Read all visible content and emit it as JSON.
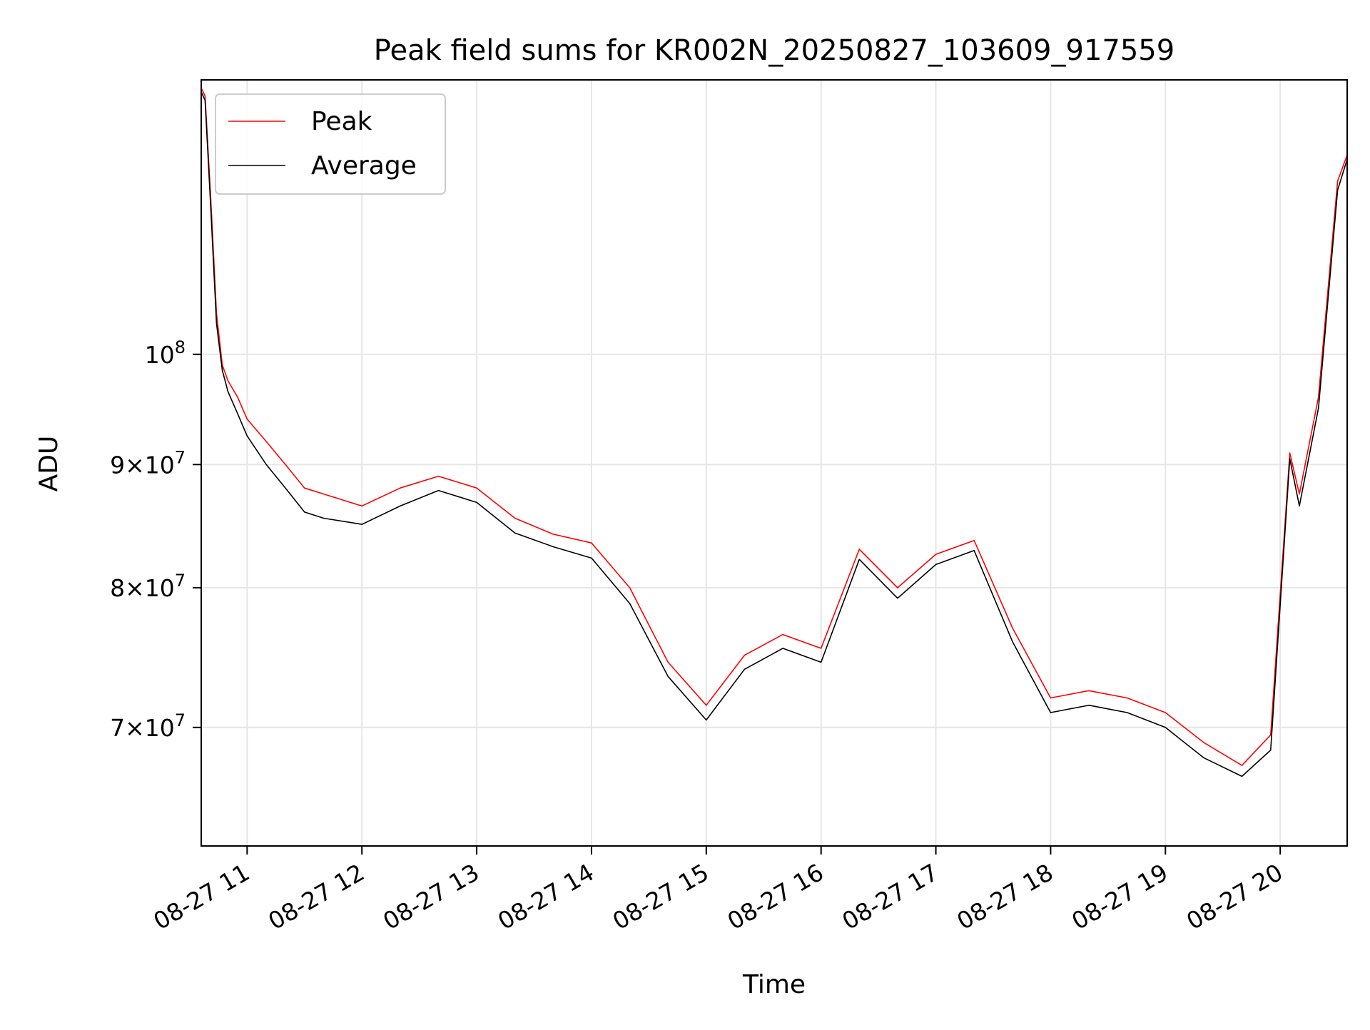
{
  "chart_data": {
    "type": "line",
    "title": "Peak field sums for KR002N_20250827_103609_917559",
    "xlabel": "Time",
    "ylabel": "ADU",
    "x_axis": {
      "kind": "datetime",
      "range": [
        "2025-08-27 10:36",
        "2025-08-27 20:35"
      ],
      "ticks": [
        {
          "value": "2025-08-27 11:00",
          "label": "08-27 11"
        },
        {
          "value": "2025-08-27 12:00",
          "label": "08-27 12"
        },
        {
          "value": "2025-08-27 13:00",
          "label": "08-27 13"
        },
        {
          "value": "2025-08-27 14:00",
          "label": "08-27 14"
        },
        {
          "value": "2025-08-27 15:00",
          "label": "08-27 15"
        },
        {
          "value": "2025-08-27 16:00",
          "label": "08-27 16"
        },
        {
          "value": "2025-08-27 17:00",
          "label": "08-27 17"
        },
        {
          "value": "2025-08-27 18:00",
          "label": "08-27 18"
        },
        {
          "value": "2025-08-27 19:00",
          "label": "08-27 19"
        },
        {
          "value": "2025-08-27 20:00",
          "label": "08-27 20"
        }
      ]
    },
    "y_axis": {
      "scale": "log",
      "range": [
        62500000,
        130000000
      ],
      "ticks": [
        {
          "value": 70000000,
          "mantissa": "7",
          "base": "10",
          "exp": "7"
        },
        {
          "value": 80000000,
          "mantissa": "8",
          "base": "10",
          "exp": "7"
        },
        {
          "value": 90000000,
          "mantissa": "9",
          "base": "10",
          "exp": "7"
        },
        {
          "value": 100000000,
          "mantissa": "",
          "base": "10",
          "exp": "8"
        }
      ]
    },
    "grid": true,
    "legend": {
      "placement": "upper-left"
    },
    "series": [
      {
        "name": "Peak",
        "color": "#ff0000",
        "x": [
          "2025-08-27 10:36",
          "2025-08-27 10:38",
          "2025-08-27 10:41",
          "2025-08-27 10:44",
          "2025-08-27 10:47",
          "2025-08-27 10:50",
          "2025-08-27 10:55",
          "2025-08-27 11:00",
          "2025-08-27 11:10",
          "2025-08-27 11:20",
          "2025-08-27 11:30",
          "2025-08-27 11:40",
          "2025-08-27 12:00",
          "2025-08-27 12:20",
          "2025-08-27 12:40",
          "2025-08-27 13:00",
          "2025-08-27 13:20",
          "2025-08-27 13:40",
          "2025-08-27 14:00",
          "2025-08-27 14:20",
          "2025-08-27 14:40",
          "2025-08-27 15:00",
          "2025-08-27 15:20",
          "2025-08-27 15:40",
          "2025-08-27 16:00",
          "2025-08-27 16:20",
          "2025-08-27 16:40",
          "2025-08-27 17:00",
          "2025-08-27 17:20",
          "2025-08-27 17:40",
          "2025-08-27 18:00",
          "2025-08-27 18:20",
          "2025-08-27 18:40",
          "2025-08-27 19:00",
          "2025-08-27 19:20",
          "2025-08-27 19:40",
          "2025-08-27 19:55",
          "2025-08-27 20:05",
          "2025-08-27 20:10",
          "2025-08-27 20:20",
          "2025-08-27 20:30",
          "2025-08-27 20:35"
        ],
        "values": [
          129000000,
          128000000,
          116000000,
          104000000,
          99000000,
          97500000,
          96000000,
          94000000,
          92000000,
          90000000,
          88000000,
          87500000,
          86500000,
          88000000,
          89000000,
          88000000,
          85500000,
          84200000,
          83500000,
          80000000,
          74500000,
          71500000,
          75000000,
          76500000,
          75500000,
          83000000,
          80000000,
          82600000,
          83700000,
          77000000,
          72000000,
          72500000,
          72000000,
          71000000,
          69000000,
          67500000,
          69500000,
          91000000,
          87500000,
          96000000,
          118000000,
          121000000
        ]
      },
      {
        "name": "Average",
        "color": "#000000",
        "x": [
          "2025-08-27 10:36",
          "2025-08-27 10:38",
          "2025-08-27 10:41",
          "2025-08-27 10:44",
          "2025-08-27 10:47",
          "2025-08-27 10:50",
          "2025-08-27 10:55",
          "2025-08-27 11:00",
          "2025-08-27 11:10",
          "2025-08-27 11:20",
          "2025-08-27 11:30",
          "2025-08-27 11:40",
          "2025-08-27 12:00",
          "2025-08-27 12:20",
          "2025-08-27 12:40",
          "2025-08-27 13:00",
          "2025-08-27 13:20",
          "2025-08-27 13:40",
          "2025-08-27 14:00",
          "2025-08-27 14:20",
          "2025-08-27 14:40",
          "2025-08-27 15:00",
          "2025-08-27 15:20",
          "2025-08-27 15:40",
          "2025-08-27 16:00",
          "2025-08-27 16:20",
          "2025-08-27 16:40",
          "2025-08-27 17:00",
          "2025-08-27 17:20",
          "2025-08-27 17:40",
          "2025-08-27 18:00",
          "2025-08-27 18:20",
          "2025-08-27 18:40",
          "2025-08-27 19:00",
          "2025-08-27 19:20",
          "2025-08-27 19:40",
          "2025-08-27 19:55",
          "2025-08-27 20:05",
          "2025-08-27 20:10",
          "2025-08-27 20:20",
          "2025-08-27 20:30",
          "2025-08-27 20:35"
        ],
        "values": [
          128500000,
          127500000,
          115000000,
          103000000,
          98500000,
          96500000,
          94500000,
          92500000,
          90000000,
          88000000,
          86000000,
          85500000,
          85000000,
          86500000,
          87800000,
          86800000,
          84300000,
          83200000,
          82300000,
          78800000,
          73500000,
          70500000,
          74000000,
          75500000,
          74500000,
          82200000,
          79200000,
          81800000,
          82900000,
          76000000,
          71000000,
          71500000,
          71000000,
          70000000,
          68000000,
          66800000,
          68500000,
          90500000,
          86500000,
          95000000,
          117000000,
          120500000
        ]
      }
    ]
  }
}
